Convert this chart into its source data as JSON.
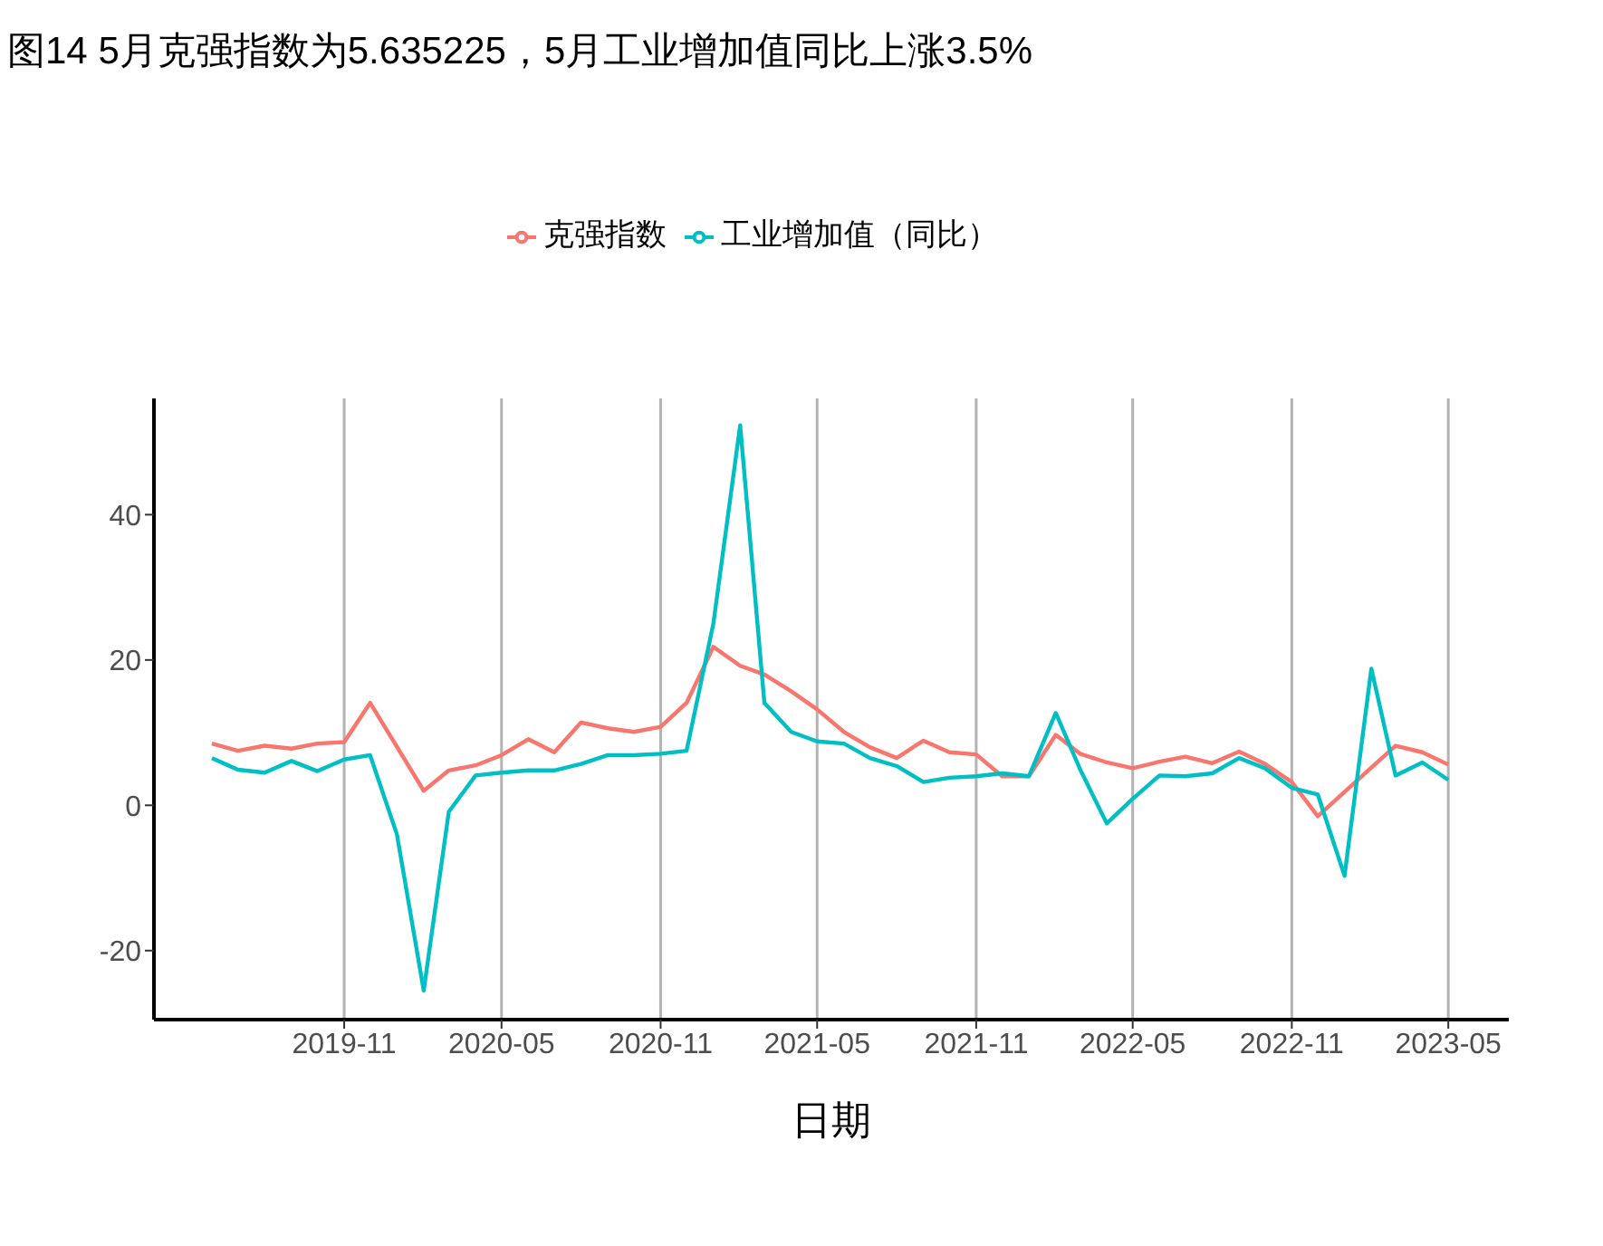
{
  "chart_data": {
    "type": "line",
    "title": "图14 5月克强指数为5.635225，5月工业增加值同比上涨3.5%",
    "xlabel": "日期",
    "xlim": [
      "2019-03-26",
      "2023-07-10"
    ],
    "xticks": [
      "2019-11",
      "2020-05",
      "2020-11",
      "2021-05",
      "2021-11",
      "2022-05",
      "2022-11",
      "2023-05"
    ],
    "ylim": [
      -29.5,
      56
    ],
    "yticks": [
      -20,
      0,
      20,
      40
    ],
    "grid": "x",
    "legend": "top",
    "marker": "none",
    "line_style": "solid",
    "series": [
      {
        "name": "克强指数",
        "color": "#f8766d",
        "x": [
          "2019-06",
          "2019-07",
          "2019-08",
          "2019-09",
          "2019-10",
          "2019-11",
          "2019-12",
          "2020-02",
          "2020-03",
          "2020-04",
          "2020-05",
          "2020-06",
          "2020-07",
          "2020-08",
          "2020-09",
          "2020-10",
          "2020-11",
          "2020-12",
          "2021-01",
          "2021-02",
          "2021-03",
          "2021-04",
          "2021-05",
          "2021-06",
          "2021-07",
          "2021-08",
          "2021-09",
          "2021-10",
          "2021-11",
          "2021-12",
          "2022-01",
          "2022-02",
          "2022-03",
          "2022-04",
          "2022-05",
          "2022-06",
          "2022-07",
          "2022-08",
          "2022-09",
          "2022-10",
          "2022-11",
          "2022-12",
          "2023-03",
          "2023-04",
          "2023-05"
        ],
        "values": [
          8.5,
          7.5,
          8.2,
          7.8,
          8.5,
          8.7,
          14.1,
          2.0,
          4.8,
          5.5,
          6.9,
          9.1,
          7.3,
          11.4,
          10.6,
          10.1,
          10.8,
          14.1,
          21.8,
          19.2,
          18.0,
          15.7,
          13.2,
          10.1,
          8.0,
          6.5,
          8.9,
          7.3,
          7.0,
          4.0,
          4.0,
          9.7,
          7.1,
          5.9,
          5.1,
          6.0,
          6.7,
          5.8,
          7.4,
          5.7,
          3.2,
          -1.5,
          8.2,
          7.3,
          5.6
        ]
      },
      {
        "name": "工业增加值（同比）",
        "color": "#00bfc4",
        "x": [
          "2019-06",
          "2019-07",
          "2019-08",
          "2019-09",
          "2019-10",
          "2019-11",
          "2019-12",
          "2020-01",
          "2020-02",
          "2020-03",
          "2020-04",
          "2020-05",
          "2020-06",
          "2020-07",
          "2020-08",
          "2020-09",
          "2020-10",
          "2020-11",
          "2020-12",
          "2021-01",
          "2021-02",
          "2021-03",
          "2021-04",
          "2021-05",
          "2021-06",
          "2021-07",
          "2021-08",
          "2021-09",
          "2021-10",
          "2021-11",
          "2021-12",
          "2022-01",
          "2022-02",
          "2022-03",
          "2022-04",
          "2022-05",
          "2022-06",
          "2022-07",
          "2022-08",
          "2022-09",
          "2022-10",
          "2022-11",
          "2022-12",
          "2023-01",
          "2023-02",
          "2023-03",
          "2023-04",
          "2023-05"
        ],
        "values": [
          6.5,
          4.9,
          4.5,
          6.1,
          4.7,
          6.3,
          6.9,
          -4.0,
          -25.5,
          -0.9,
          4.1,
          4.5,
          4.8,
          4.8,
          5.7,
          6.9,
          6.9,
          7.1,
          7.5,
          25.0,
          52.3,
          14.1,
          10.1,
          8.8,
          8.5,
          6.5,
          5.4,
          3.2,
          3.8,
          4.0,
          4.4,
          4.0,
          12.7,
          5.0,
          -2.5,
          0.9,
          4.1,
          4.0,
          4.4,
          6.5,
          5.1,
          2.4,
          1.5,
          -9.7,
          18.8,
          4.1,
          5.9,
          3.5
        ]
      }
    ]
  }
}
